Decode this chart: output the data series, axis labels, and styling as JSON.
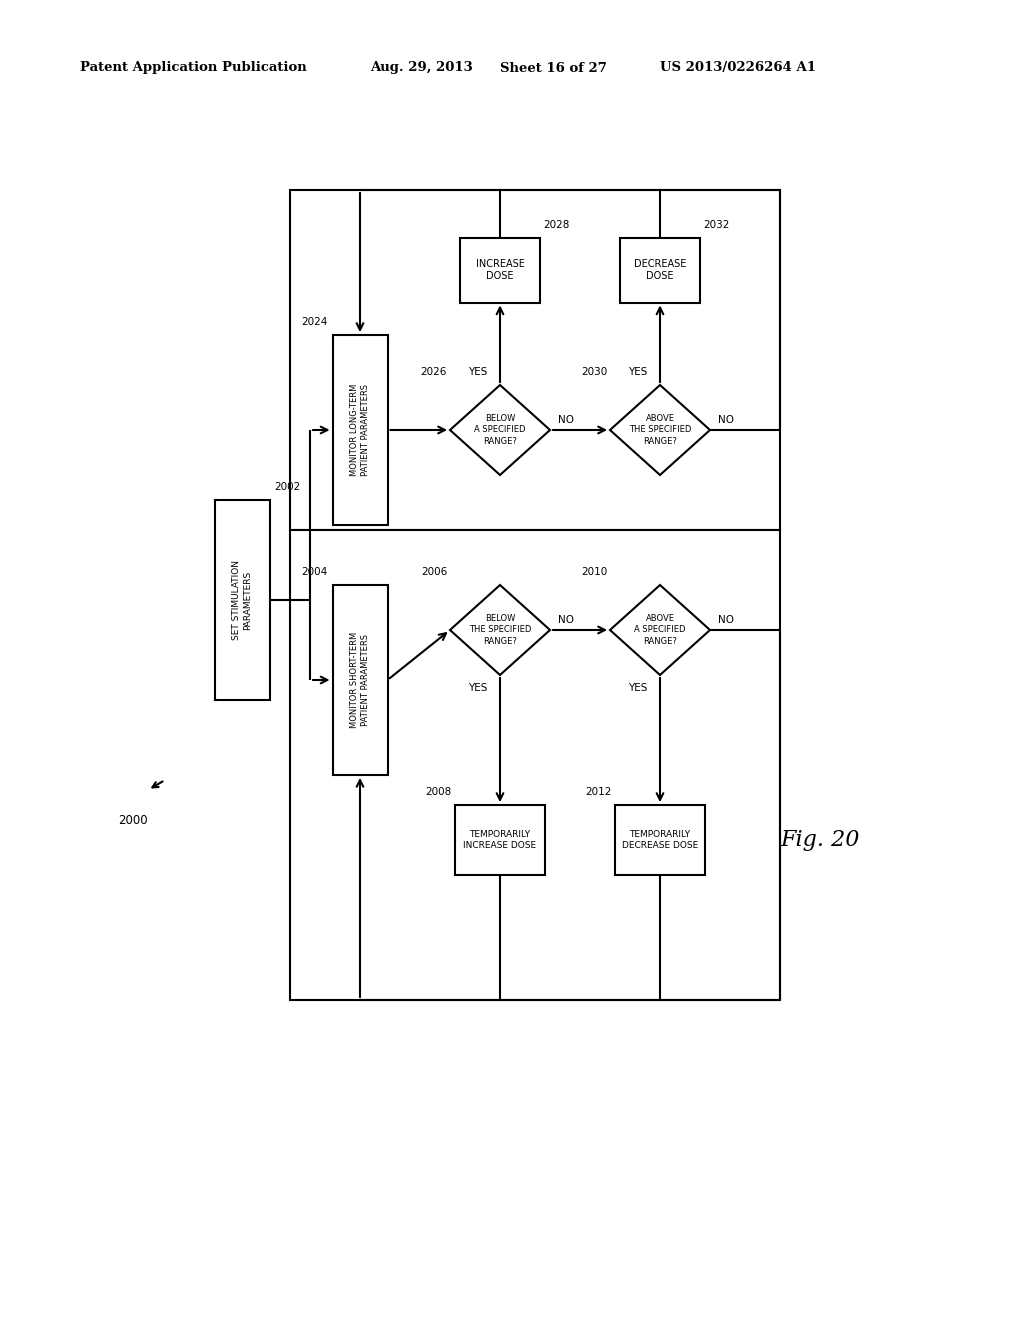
{
  "bg_color": "#ffffff",
  "header_text": "Patent Application Publication",
  "header_date": "Aug. 29, 2013",
  "header_sheet": "Sheet 16 of 27",
  "header_patent": "US 2013/0226264 A1",
  "fig_label": "Fig. 20"
}
